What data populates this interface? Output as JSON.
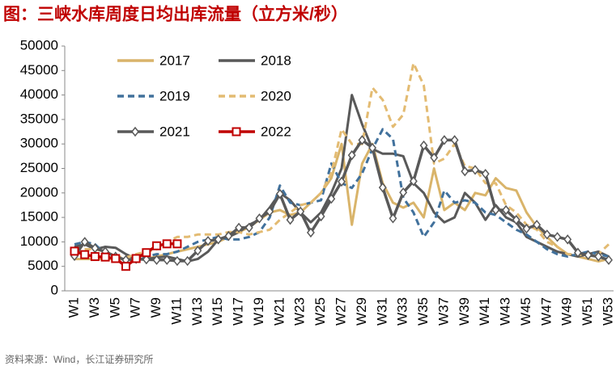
{
  "chart_data": {
    "type": "line",
    "title": "图：三峡水库周度日均出库流量（立方米/秒）",
    "source": "资料来源：Wind，长江证券研究所",
    "categories": [
      "W1",
      null,
      "W3",
      null,
      "W5",
      null,
      "W7",
      null,
      "W9",
      null,
      "W11",
      null,
      "W13",
      null,
      "W15",
      null,
      "W17",
      null,
      "W19",
      null,
      "W21",
      null,
      "W23",
      null,
      "W25",
      null,
      "W27",
      null,
      "W29",
      null,
      "W31",
      null,
      "W33",
      null,
      "W35",
      null,
      "W37",
      null,
      "W39",
      null,
      "W41",
      null,
      "W43",
      null,
      "W45",
      null,
      "W47",
      null,
      "W49",
      null,
      "W51",
      null,
      "W53"
    ],
    "ylim": [
      0,
      50000
    ],
    "yticks": [
      0,
      5000,
      10000,
      15000,
      20000,
      25000,
      30000,
      35000,
      40000,
      45000,
      50000
    ],
    "grid": false,
    "legend": "upper-left",
    "series": [
      {
        "name": "2017",
        "color": "#d9b46a",
        "dash": false,
        "marker": "none",
        "values": [
          6500,
          6500,
          6500,
          6500,
          6500,
          6500,
          6500,
          6500,
          7000,
          7500,
          8000,
          8500,
          9000,
          9500,
          10000,
          11000,
          12000,
          13000,
          14500,
          16000,
          16500,
          15500,
          16000,
          18000,
          20000,
          23000,
          30000,
          13500,
          26000,
          30000,
          22000,
          18000,
          17000,
          18000,
          15000,
          25000,
          16500,
          18000,
          16500,
          20000,
          19500,
          23000,
          21000,
          20500,
          16000,
          13000,
          11000,
          9000,
          7500,
          7000,
          6500,
          6000,
          6500
        ]
      },
      {
        "name": "2018",
        "color": "#595959",
        "dash": false,
        "marker": "none",
        "values": [
          9000,
          9500,
          8500,
          9000,
          8800,
          7500,
          6500,
          6500,
          6800,
          7000,
          6500,
          6000,
          6500,
          8000,
          10500,
          11000,
          12000,
          13500,
          14500,
          17000,
          20000,
          18500,
          16000,
          14000,
          16000,
          20000,
          25000,
          40000,
          34000,
          29000,
          28000,
          28000,
          27500,
          22000,
          20000,
          16000,
          14000,
          15000,
          20000,
          18000,
          14500,
          17500,
          15000,
          14000,
          11000,
          10000,
          9000,
          8000,
          7500,
          7000,
          7500,
          8000,
          7000
        ]
      },
      {
        "name": "2019",
        "color": "#41719c",
        "dash": true,
        "marker": "none",
        "values": [
          9500,
          10000,
          9500,
          7500,
          6500,
          6500,
          6500,
          7000,
          7500,
          7500,
          8000,
          9000,
          10000,
          10500,
          11000,
          10500,
          10500,
          11000,
          12000,
          15000,
          21500,
          18000,
          17500,
          18000,
          18500,
          26000,
          22000,
          21000,
          24000,
          29000,
          33000,
          31000,
          19000,
          16000,
          11000,
          14000,
          20500,
          18000,
          18500,
          18000,
          16000,
          15500,
          14000,
          12500,
          11500,
          10000,
          8500,
          7500,
          7000,
          7500,
          8000,
          7500,
          7000
        ]
      },
      {
        "name": "2020",
        "color": "#e3bb72",
        "dash": true,
        "marker": "none",
        "values": [
          8000,
          8500,
          8500,
          8000,
          7000,
          6800,
          7500,
          8000,
          8500,
          10000,
          11000,
          11000,
          11500,
          11500,
          11500,
          12000,
          12000,
          11500,
          12000,
          12500,
          14500,
          16000,
          17500,
          18000,
          20000,
          24000,
          33000,
          30000,
          30000,
          41500,
          39000,
          33500,
          36000,
          46500,
          42000,
          26000,
          27000,
          30000,
          25500,
          25000,
          22000,
          22000,
          17500,
          16000,
          13500,
          12500,
          10000,
          9000,
          7500,
          7500,
          7000,
          7500,
          9500
        ]
      },
      {
        "name": "2021",
        "color": "#595959",
        "dash": false,
        "marker": "diamond",
        "values": [
          7100,
          10000,
          8700,
          8000,
          7000,
          6300,
          6500,
          6400,
          6300,
          6300,
          6100,
          6100,
          8200,
          10200,
          10500,
          11200,
          12900,
          12900,
          14800,
          16200,
          19800,
          14500,
          16200,
          11900,
          15200,
          18800,
          22300,
          27700,
          30800,
          29200,
          21100,
          14800,
          20100,
          22400,
          29700,
          27200,
          30800,
          30800,
          24400,
          24700,
          23900,
          16500,
          16500,
          14500,
          12700,
          13500,
          11500,
          11000,
          10500,
          7800,
          7300,
          7000,
          6300
        ]
      },
      {
        "name": "2022",
        "color": "#c00000",
        "dash": false,
        "marker": "square",
        "values": [
          8100,
          7400,
          7000,
          6900,
          6600,
          5000,
          6600,
          7800,
          9200,
          9600,
          9600,
          null,
          null,
          null,
          null,
          null,
          null,
          null,
          null,
          null,
          null,
          null,
          null,
          null,
          null,
          null,
          null,
          null,
          null,
          null,
          null,
          null,
          null,
          null,
          null,
          null,
          null,
          null,
          null,
          null,
          null,
          null,
          null,
          null,
          null,
          null,
          null,
          null,
          null,
          null,
          null,
          null,
          null
        ]
      }
    ]
  }
}
